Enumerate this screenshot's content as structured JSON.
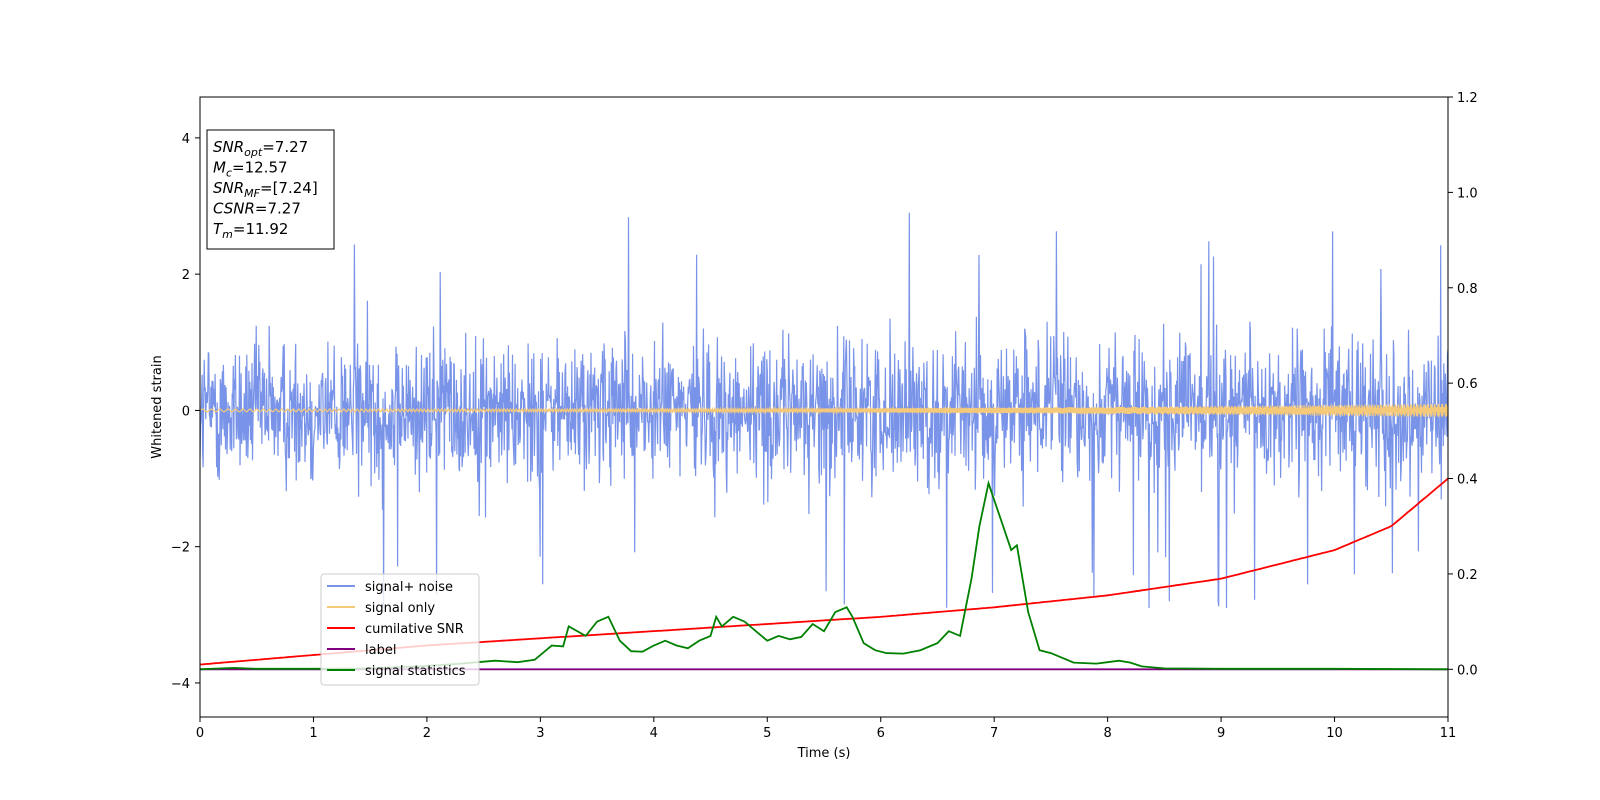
{
  "chart_data": {
    "type": "line",
    "xlabel": "Time (s)",
    "ylabel": "Whitened strain",
    "xlim": [
      0,
      11
    ],
    "ylim": [
      -4.5,
      4.6
    ],
    "ylim_right": [
      -0.1,
      1.2
    ],
    "x_ticks": [
      0,
      1,
      2,
      3,
      4,
      5,
      6,
      7,
      8,
      9,
      10,
      11
    ],
    "y_ticks": [
      -4,
      -2,
      0,
      2,
      4
    ],
    "y_ticks_right": [
      0.0,
      0.2,
      0.4,
      0.6,
      0.8,
      1.0,
      1.2
    ],
    "x_tick_labels": [
      "0",
      "1",
      "2",
      "3",
      "4",
      "5",
      "6",
      "7",
      "8",
      "9",
      "10",
      "11"
    ],
    "y_tick_labels": [
      "−4",
      "−2",
      "0",
      "2",
      "4"
    ],
    "y_tick_labels_right": [
      "0.0",
      "0.2",
      "0.4",
      "0.6",
      "0.8",
      "1.0",
      "1.2"
    ],
    "grid": false,
    "legend_position": "lower-left",
    "series": [
      {
        "name": "signal+ noise",
        "axis": "left",
        "color": "#7893e8",
        "description_values": {
          "approx_std": 0.75,
          "approx_range": [
            -2.9,
            2.95
          ]
        }
      },
      {
        "name": "signal only",
        "axis": "left",
        "color": "#f5c97a",
        "amplitude_start": 0.02,
        "amplitude_end": 0.1
      },
      {
        "name": "cumilative SNR",
        "axis": "right",
        "color": "#ff0000",
        "x": [
          0,
          1,
          2,
          3,
          4,
          5,
          6,
          7,
          8,
          9,
          10,
          10.5,
          11
        ],
        "values": [
          0.01,
          0.03,
          0.05,
          0.065,
          0.08,
          0.095,
          0.11,
          0.13,
          0.155,
          0.19,
          0.25,
          0.3,
          0.4
        ]
      },
      {
        "name": "label",
        "axis": "right",
        "color": "#800080",
        "x": [
          0,
          11
        ],
        "values": [
          0.0,
          0.0
        ]
      },
      {
        "name": "signal statistics",
        "axis": "right",
        "color": "#008000",
        "x": [
          0,
          0.3,
          0.5,
          1.0,
          1.5,
          2.0,
          2.3,
          2.5,
          2.6,
          2.8,
          2.95,
          3.1,
          3.2,
          3.25,
          3.4,
          3.5,
          3.6,
          3.7,
          3.8,
          3.9,
          4.0,
          4.1,
          4.2,
          4.3,
          4.4,
          4.5,
          4.55,
          4.6,
          4.7,
          4.8,
          4.9,
          5.0,
          5.1,
          5.2,
          5.3,
          5.4,
          5.5,
          5.6,
          5.7,
          5.75,
          5.85,
          5.95,
          6.05,
          6.2,
          6.35,
          6.5,
          6.6,
          6.7,
          6.8,
          6.87,
          6.95,
          7.05,
          7.15,
          7.2,
          7.3,
          7.4,
          7.5,
          7.7,
          7.9,
          8.0,
          8.1,
          8.2,
          8.3,
          8.5,
          9.0,
          10.0,
          11.0
        ],
        "values": [
          0.0,
          0.003,
          0.001,
          0.001,
          0.002,
          0.007,
          0.012,
          0.016,
          0.018,
          0.015,
          0.02,
          0.05,
          0.048,
          0.09,
          0.07,
          0.1,
          0.11,
          0.06,
          0.038,
          0.037,
          0.05,
          0.06,
          0.05,
          0.044,
          0.06,
          0.07,
          0.11,
          0.09,
          0.11,
          0.1,
          0.08,
          0.06,
          0.07,
          0.063,
          0.068,
          0.095,
          0.08,
          0.12,
          0.13,
          0.11,
          0.055,
          0.04,
          0.034,
          0.033,
          0.04,
          0.055,
          0.08,
          0.07,
          0.19,
          0.3,
          0.39,
          0.32,
          0.25,
          0.26,
          0.12,
          0.04,
          0.034,
          0.014,
          0.012,
          0.015,
          0.018,
          0.014,
          0.006,
          0.002,
          0.001,
          0.001,
          0.0
        ]
      }
    ],
    "annotation": {
      "lines": [
        {
          "symbol": "SNR",
          "sub": "opt",
          "value": "=7.27"
        },
        {
          "symbol": "M",
          "sub": "c",
          "value": "=12.57"
        },
        {
          "symbol": "SNR",
          "sub": "MF",
          "value": "=[7.24]"
        },
        {
          "symbol": "CSNR",
          "sub": "",
          "value": "=7.27"
        },
        {
          "symbol": "T",
          "sub": "m",
          "value": "=11.92"
        }
      ]
    }
  }
}
